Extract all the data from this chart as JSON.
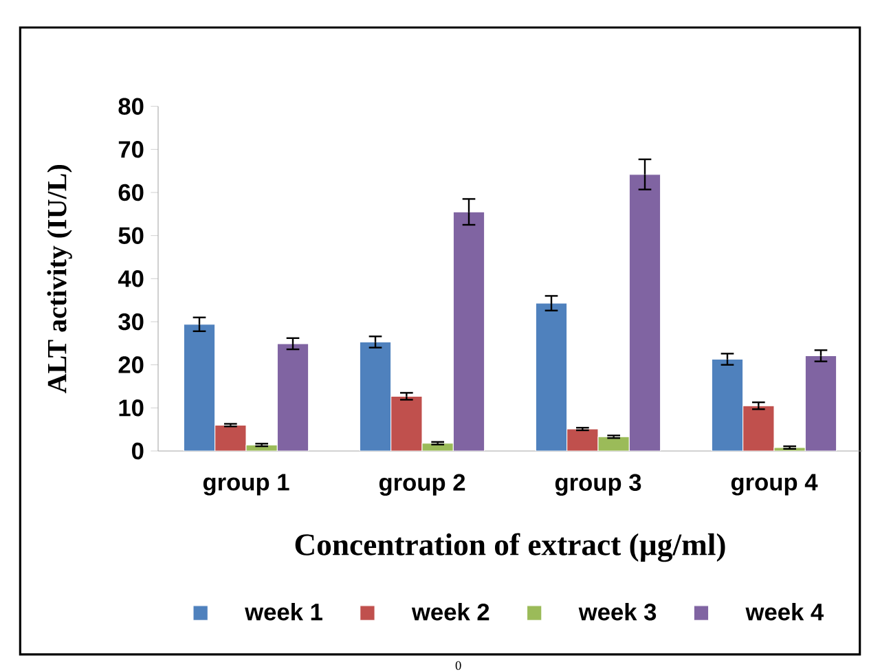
{
  "chart_data": {
    "type": "bar",
    "xlabel": "Concentration of extract (µg/ml)",
    "ylabel": "ALT activity (IU/L)",
    "categories": [
      "group 1",
      "group 2",
      "group 3",
      "group 4"
    ],
    "series": [
      {
        "name": "week 1",
        "color": "#4f81bd",
        "values": [
          29.4,
          25.3,
          34.3,
          21.3
        ],
        "errors": [
          1.6,
          1.3,
          1.7,
          1.3
        ]
      },
      {
        "name": "week 2",
        "color": "#c0504d",
        "values": [
          6.0,
          12.7,
          5.1,
          10.5
        ],
        "errors": [
          0.3,
          0.8,
          0.3,
          0.8
        ]
      },
      {
        "name": "week 3",
        "color": "#9bbb59",
        "values": [
          1.4,
          1.8,
          3.3,
          0.8
        ],
        "errors": [
          0.3,
          0.3,
          0.3,
          0.3
        ]
      },
      {
        "name": "week 4",
        "color": "#8064a2",
        "values": [
          24.9,
          55.5,
          64.2,
          22.1
        ],
        "errors": [
          1.3,
          3.0,
          3.5,
          1.3
        ]
      }
    ],
    "ylim": [
      0,
      80
    ],
    "yticks": [
      0,
      10,
      20,
      30,
      40,
      50,
      60,
      70,
      80
    ],
    "legend": "bottom",
    "annotations": [
      "0"
    ]
  }
}
